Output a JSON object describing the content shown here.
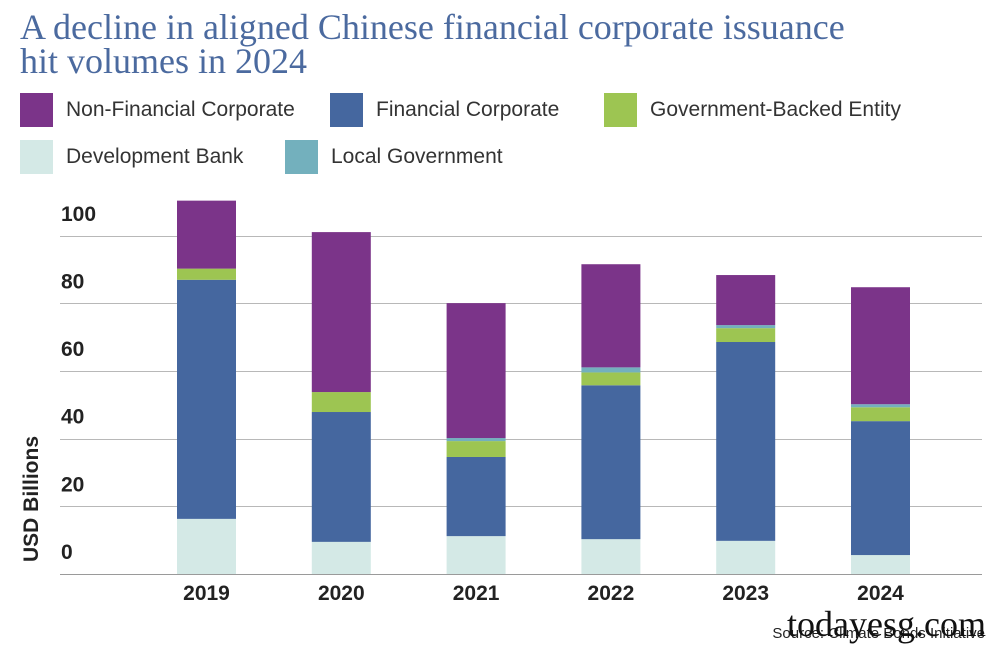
{
  "chart_data": {
    "type": "bar",
    "stacked": true,
    "title": [
      "A decline in aligned Chinese financial corporate issuance",
      "hit volumes in 2024"
    ],
    "xlabel": "",
    "ylabel": "USD Billions",
    "categories": [
      "2019",
      "2020",
      "2021",
      "2022",
      "2023",
      "2024"
    ],
    "yticks": [
      0,
      20,
      40,
      60,
      80,
      100
    ],
    "ylim": [
      0,
      110
    ],
    "grid": true,
    "legend": "top",
    "series": [
      {
        "name": "Non-Financial Corporate",
        "color": "#7b3489",
        "values": [
          20.1,
          47.3,
          39.9,
          30.5,
          14.8,
          34.6
        ]
      },
      {
        "name": "Financial Corporate",
        "color": "#45679f",
        "values": [
          70.7,
          38.4,
          23.4,
          45.5,
          58.8,
          39.6
        ]
      },
      {
        "name": "Government-Backed Entity",
        "color": "#9dc552",
        "values": [
          3.3,
          5.9,
          4.7,
          3.8,
          4.1,
          4.1
        ]
      },
      {
        "name": "Development Bank",
        "color": "#d4e9e6",
        "values": [
          16.3,
          9.5,
          11.2,
          10.3,
          9.8,
          5.6
        ]
      },
      {
        "name": "Local Government",
        "color": "#73b0bd",
        "values": [
          0,
          0,
          0.9,
          1.5,
          0.9,
          0.9
        ]
      }
    ]
  },
  "source": "Source: Climate Bonds Initiative",
  "watermark": "todayesg.com"
}
